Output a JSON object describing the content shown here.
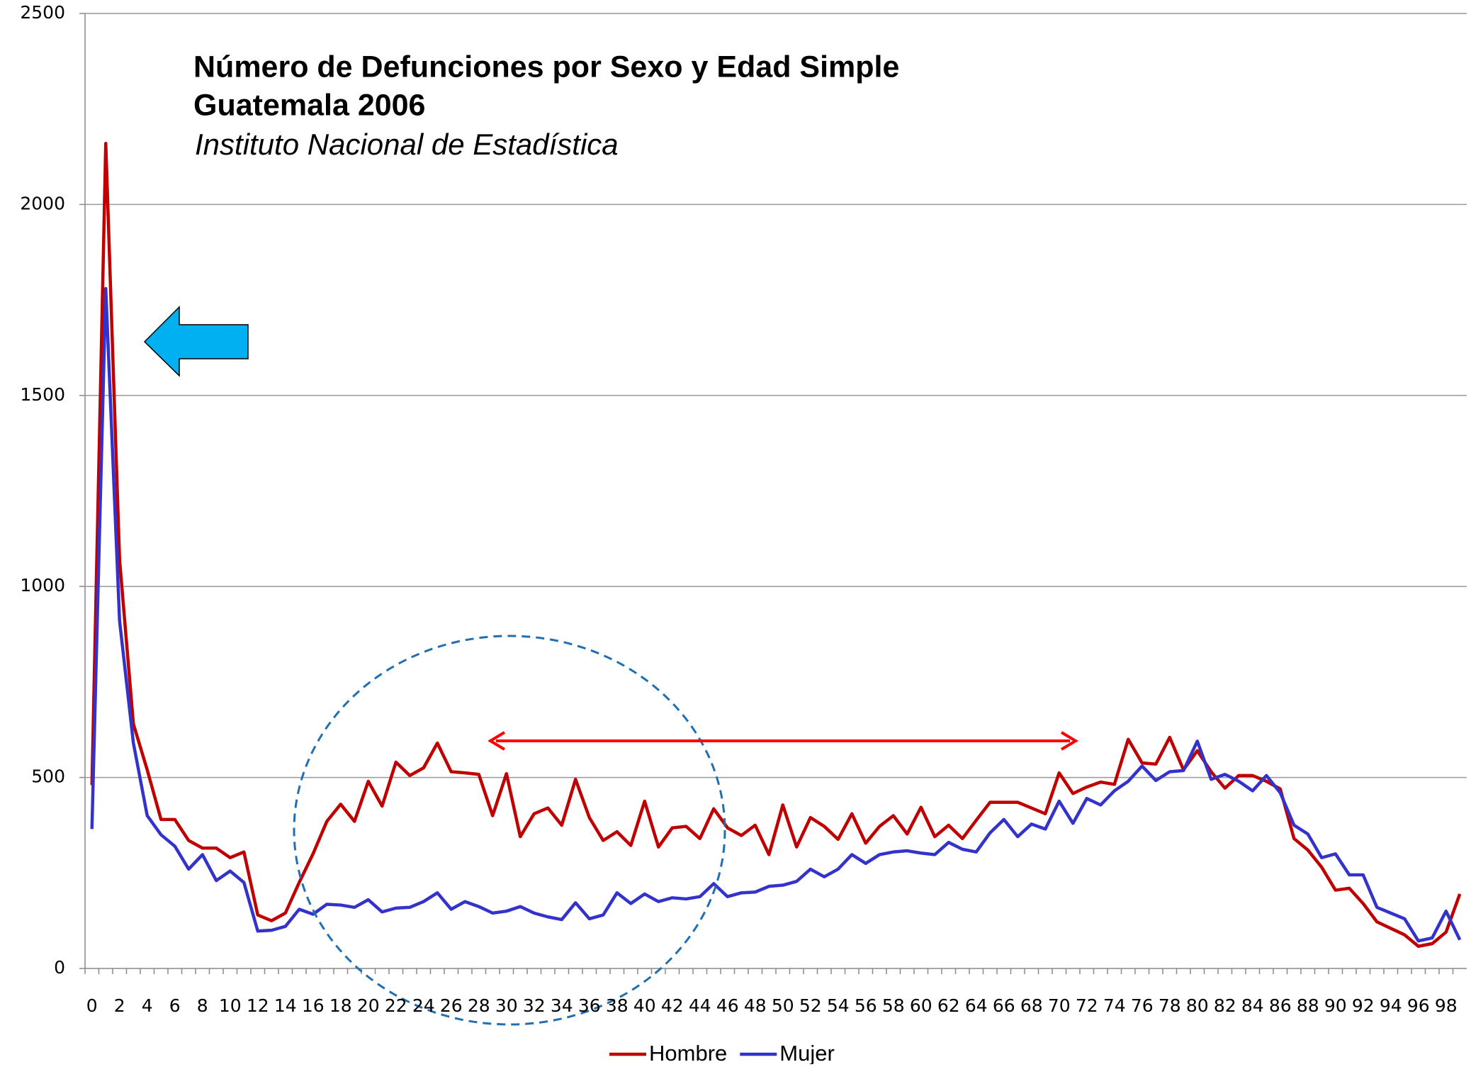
{
  "chart_data": {
    "type": "line",
    "title": "Número de Defunciones por Sexo y Edad Simple",
    "subtitle": "Guatemala 2006",
    "source": "Instituto Nacional de Estadística",
    "categories": [
      "0",
      null,
      "2",
      null,
      "4",
      null,
      "6",
      null,
      "8",
      null,
      "10",
      null,
      "12",
      null,
      "14",
      null,
      "16",
      null,
      "18",
      null,
      "20",
      null,
      "22",
      null,
      "24",
      null,
      "26",
      null,
      "28",
      null,
      "30",
      null,
      "32",
      null,
      "34",
      null,
      "36",
      null,
      "38",
      null,
      "40",
      null,
      "42",
      null,
      "44",
      null,
      "46",
      null,
      "48",
      null,
      "50",
      null,
      "52",
      null,
      "54",
      null,
      "56",
      null,
      "58",
      null,
      "60",
      null,
      "62",
      null,
      "64",
      null,
      "66",
      null,
      "68",
      null,
      "70",
      null,
      "72",
      null,
      "74",
      null,
      "76",
      null,
      "78",
      null,
      "80",
      null,
      "82",
      null,
      "84",
      null,
      "86",
      null,
      "88",
      null,
      "90",
      null,
      "92",
      null,
      "94",
      null,
      "96",
      null,
      "98",
      null
    ],
    "series": [
      {
        "name": "Hombre",
        "color": "#c00000",
        "values": [
          480,
          2160,
          1070,
          640,
          520,
          390,
          390,
          335,
          315,
          315,
          290,
          305,
          140,
          125,
          145,
          225,
          300,
          385,
          430,
          385,
          490,
          425,
          540,
          505,
          525,
          590,
          515,
          512,
          508,
          400,
          510,
          345,
          405,
          420,
          375,
          495,
          395,
          335,
          358,
          322,
          438,
          318,
          368,
          372,
          340,
          418,
          368,
          348,
          375,
          298,
          428,
          318,
          395,
          372,
          338,
          405,
          328,
          372,
          400,
          352,
          422,
          345,
          375,
          340,
          388,
          435,
          435,
          435,
          420,
          405,
          512,
          458,
          475,
          488,
          482,
          600,
          538,
          535,
          605,
          520,
          570,
          515,
          472,
          505,
          505,
          490,
          470,
          340,
          310,
          265,
          205,
          210,
          170,
          122,
          105,
          88,
          58,
          65,
          95,
          195
        ]
      },
      {
        "name": "Mujer",
        "color": "#3333cc",
        "values": [
          365,
          1780,
          910,
          590,
          400,
          350,
          320,
          260,
          298,
          230,
          255,
          225,
          98,
          100,
          110,
          155,
          142,
          168,
          166,
          160,
          180,
          148,
          158,
          160,
          175,
          198,
          155,
          175,
          162,
          145,
          150,
          162,
          145,
          135,
          128,
          172,
          130,
          140,
          198,
          170,
          195,
          175,
          185,
          182,
          188,
          222,
          188,
          198,
          200,
          215,
          218,
          228,
          260,
          240,
          260,
          298,
          275,
          298,
          305,
          308,
          302,
          298,
          330,
          312,
          305,
          355,
          390,
          345,
          378,
          365,
          438,
          380,
          445,
          428,
          465,
          490,
          530,
          492,
          515,
          518,
          595,
          495,
          508,
          490,
          465,
          505,
          460,
          375,
          352,
          290,
          300,
          245,
          245,
          160,
          145,
          130,
          72,
          80,
          150,
          75
        ]
      }
    ],
    "ylim": [
      0,
      2500
    ],
    "yticks": [
      0,
      500,
      1000,
      1500,
      2000,
      2500
    ],
    "grid": true,
    "legend": "bottom"
  }
}
